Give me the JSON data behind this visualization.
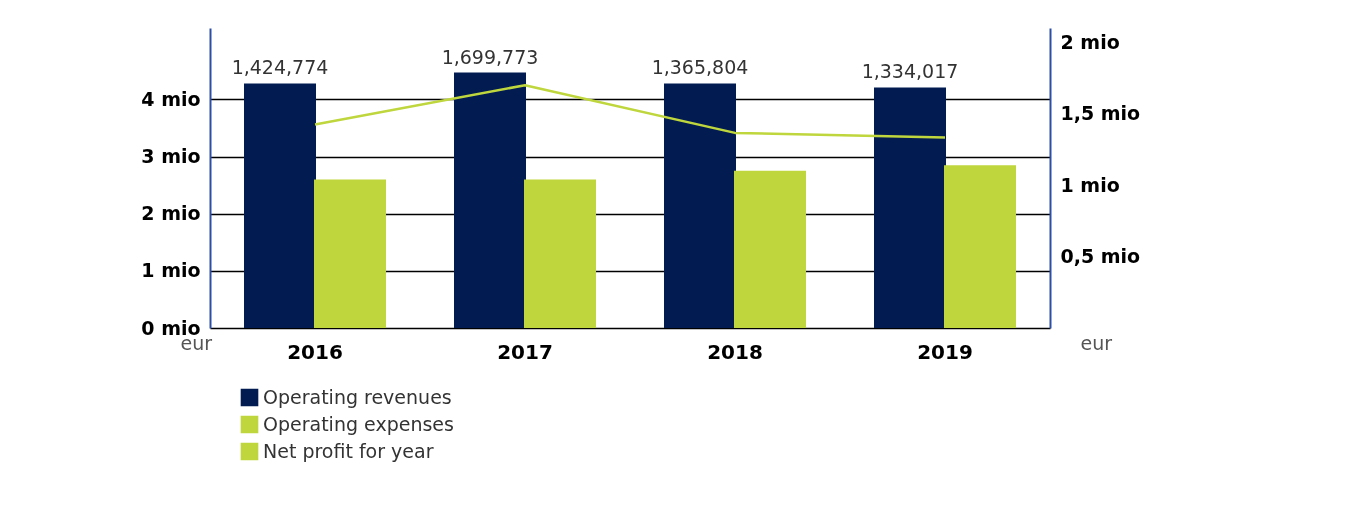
{
  "chart_data": {
    "type": "bar",
    "categories": [
      "2016",
      "2017",
      "2018",
      "2019"
    ],
    "series": [
      {
        "name": "Operating revenues",
        "color": "#021c52",
        "values": [
          4.28,
          4.47,
          4.28,
          4.21
        ]
      },
      {
        "name": "Operating expenses",
        "color": "#bfd63c",
        "values": [
          2.6,
          2.6,
          2.75,
          2.85
        ]
      },
      {
        "name": "Net profit for year",
        "type": "line",
        "axis": "y2",
        "color": "#bfd63c",
        "values": [
          1.424774,
          1.699773,
          1.365804,
          1.334017
        ]
      }
    ],
    "annotations": [
      "1,424,774",
      "1,699,773",
      "1,365,804",
      "1,334,017"
    ],
    "ylabel": "eur",
    "y2label": "eur",
    "ylim": [
      0,
      5.25
    ],
    "yticks": [
      {
        "value": 0,
        "label": "0 mio"
      },
      {
        "value": 1,
        "label": "1 mio"
      },
      {
        "value": 2,
        "label": "2 mio"
      },
      {
        "value": 3,
        "label": "3 mio"
      },
      {
        "value": 4,
        "label": "4 mio"
      }
    ],
    "y2lim": [
      0,
      2.1
    ],
    "y2ticks": [
      {
        "value": 0.5,
        "label": "0,5 mio"
      },
      {
        "value": 1,
        "label": "1 mio"
      },
      {
        "value": 1.5,
        "label": "1,5 mio"
      },
      {
        "value": 2,
        "label": "2 mio"
      }
    ],
    "grid": "y",
    "legend": "bottom left",
    "marker": "none",
    "line_style": "solid"
  }
}
